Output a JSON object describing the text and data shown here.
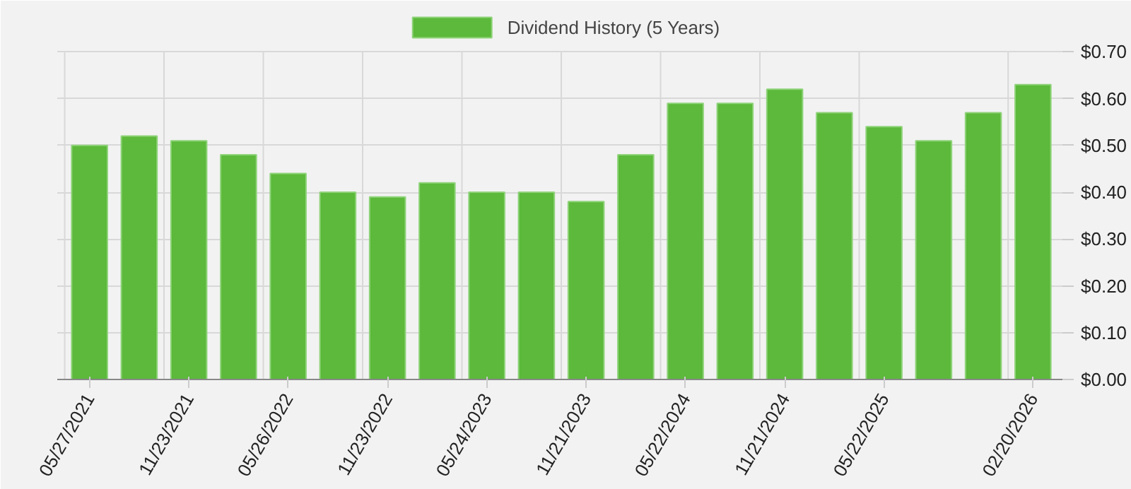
{
  "chart_data": {
    "type": "bar",
    "categories": [
      "05/27/2021",
      null,
      "11/23/2021",
      null,
      "05/26/2022",
      null,
      "11/23/2022",
      null,
      "05/24/2023",
      null,
      "11/21/2023",
      null,
      "05/22/2024",
      null,
      "11/21/2024",
      null,
      "05/22/2025",
      null,
      null,
      "02/20/2026"
    ],
    "series": [
      {
        "name": "Dividend History (5 Years)",
        "color": "#5cb93b",
        "values": [
          0.5,
          0.52,
          0.51,
          0.48,
          0.44,
          0.4,
          0.39,
          0.42,
          0.4,
          0.4,
          0.38,
          0.48,
          0.59,
          0.59,
          0.62,
          0.57,
          0.54,
          0.51,
          0.57,
          0.63
        ]
      }
    ],
    "ylim": [
      0,
      0.7
    ],
    "yticks": [
      {
        "value": 0,
        "label": "$0.00"
      },
      {
        "value": 0.1,
        "label": "$0.10"
      },
      {
        "value": 0.2,
        "label": "$0.20"
      },
      {
        "value": 0.3,
        "label": "$0.30"
      },
      {
        "value": 0.4,
        "label": "$0.40"
      },
      {
        "value": 0.5,
        "label": "$0.50"
      },
      {
        "value": 0.6,
        "label": "$0.60"
      },
      {
        "value": 0.7,
        "label": "$0.70"
      }
    ],
    "grid": true,
    "legend": "top"
  }
}
